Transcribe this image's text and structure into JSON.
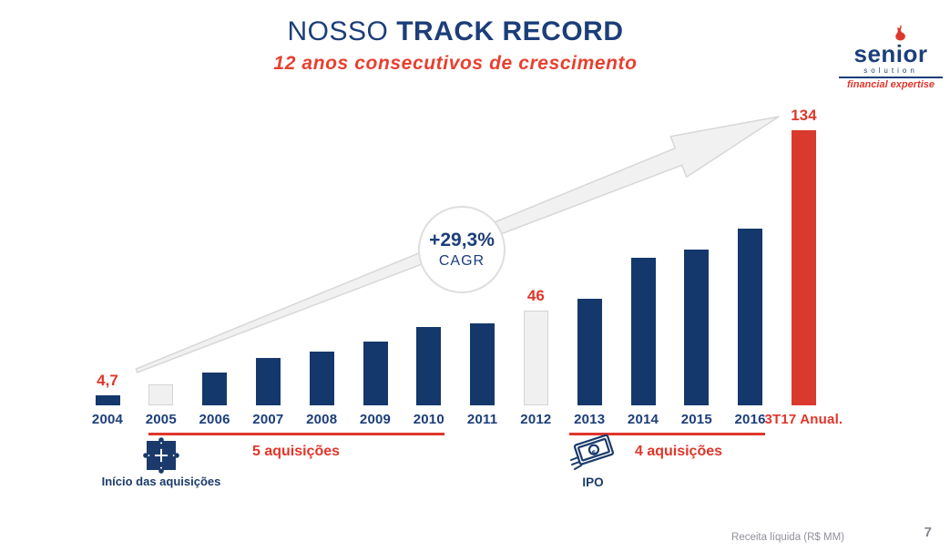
{
  "header": {
    "title_regular": "NOSSO ",
    "title_bold": "TRACK RECORD",
    "subtitle": "12 anos consecutivos de crescimento"
  },
  "logo": {
    "name": "senior",
    "sub": "solution",
    "tagline": "financial expertise"
  },
  "chart_data": {
    "type": "bar",
    "title": "NOSSO TRACK RECORD",
    "subtitle": "12 anos consecutivos de crescimento",
    "ylabel": "Receita líquida (R$ MM)",
    "ylim": [
      0,
      140
    ],
    "grid": false,
    "legend": "none",
    "bars": [
      {
        "category": "2004",
        "value": 4.7,
        "style": "navy",
        "shown_label": "4,7"
      },
      {
        "category": "2005",
        "value": 10,
        "style": "muted",
        "shown_label": ""
      },
      {
        "category": "2006",
        "value": 16,
        "style": "navy",
        "shown_label": ""
      },
      {
        "category": "2007",
        "value": 23,
        "style": "navy",
        "shown_label": ""
      },
      {
        "category": "2008",
        "value": 26,
        "style": "navy",
        "shown_label": ""
      },
      {
        "category": "2009",
        "value": 31,
        "style": "navy",
        "shown_label": ""
      },
      {
        "category": "2010",
        "value": 38,
        "style": "navy",
        "shown_label": ""
      },
      {
        "category": "2011",
        "value": 40,
        "style": "navy",
        "shown_label": ""
      },
      {
        "category": "2012",
        "value": 46,
        "style": "muted",
        "shown_label": "46"
      },
      {
        "category": "2013",
        "value": 52,
        "style": "navy",
        "shown_label": ""
      },
      {
        "category": "2014",
        "value": 72,
        "style": "navy",
        "shown_label": ""
      },
      {
        "category": "2015",
        "value": 76,
        "style": "navy",
        "shown_label": ""
      },
      {
        "category": "2016",
        "value": 86,
        "style": "navy",
        "shown_label": ""
      },
      {
        "category": "3T17 Anual.",
        "value": 134,
        "style": "highlight",
        "shown_label": "134"
      }
    ],
    "colors": {
      "navy": "#14386b",
      "muted": "#f0f0f0",
      "muted_border": "#d4d4d4",
      "highlight": "#da392e"
    }
  },
  "annotations": {
    "cagr": {
      "value": "+29,3%",
      "label": "CAGR"
    },
    "acquisitions_left": {
      "label": "5 aquisições",
      "from": "2005",
      "to": "2010"
    },
    "acquisitions_right": {
      "label": "4 aquisições",
      "from": "2013",
      "to": "2016"
    },
    "milestone_start": {
      "label": "Início das aquisições",
      "at": "2005"
    },
    "milestone_ipo": {
      "label": "IPO",
      "at": "2013"
    }
  },
  "footer": {
    "note": "Receita líquida (R$ MM)",
    "page_number": "7"
  }
}
